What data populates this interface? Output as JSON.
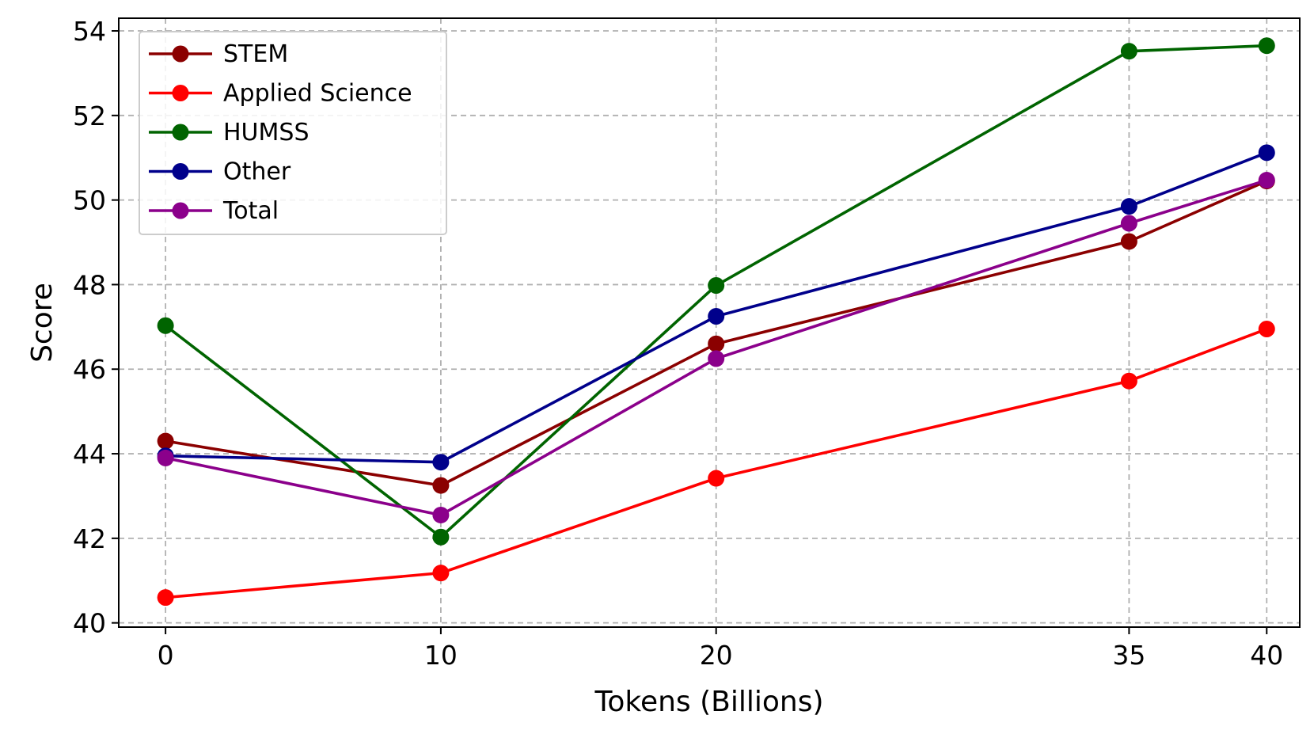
{
  "chart_data": {
    "type": "line",
    "xlabel": "Tokens (Billions)",
    "ylabel": "Score",
    "x": [
      0,
      10,
      20,
      35,
      40
    ],
    "x_ticks": [
      "0",
      "10",
      "20",
      "35",
      "40"
    ],
    "y_ticks": [
      "40",
      "42",
      "44",
      "46",
      "48",
      "50",
      "52",
      "54"
    ],
    "xlim": [
      -1.7,
      41.2
    ],
    "ylim": [
      39.9,
      54.3
    ],
    "grid": true,
    "grid_style": "dashed",
    "legend_position": "top-left",
    "marker": "circle",
    "series": [
      {
        "name": "STEM",
        "color": "#8b0000",
        "values": [
          44.3,
          43.25,
          46.6,
          49.02,
          50.45
        ]
      },
      {
        "name": "Applied Science",
        "color": "#ff0000",
        "values": [
          40.6,
          41.18,
          43.42,
          45.72,
          46.95
        ]
      },
      {
        "name": "HUMSS",
        "color": "#006400",
        "values": [
          47.03,
          42.03,
          47.98,
          53.52,
          53.65
        ]
      },
      {
        "name": "Other",
        "color": "#00008b",
        "values": [
          43.95,
          43.8,
          47.25,
          49.85,
          51.12
        ]
      },
      {
        "name": "Total",
        "color": "#8b008b",
        "values": [
          43.9,
          42.55,
          46.25,
          49.45,
          50.47
        ]
      }
    ]
  }
}
